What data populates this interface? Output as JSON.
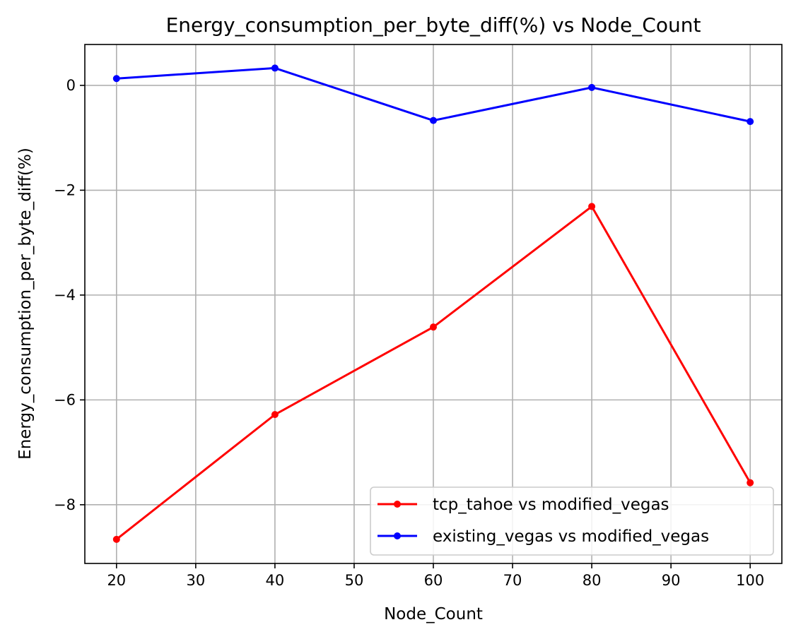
{
  "chart_data": {
    "type": "line",
    "title": "Energy_consumption_per_byte_diff(%) vs Node_Count",
    "xlabel": "Node_Count",
    "ylabel": "Energy_consumption_per_byte_diff(%)",
    "x": [
      20,
      40,
      60,
      80,
      100
    ],
    "xlim": [
      16,
      104
    ],
    "ylim": [
      -9.12,
      0.78
    ],
    "xticks": [
      20,
      30,
      40,
      50,
      60,
      70,
      80,
      90,
      100
    ],
    "yticks": [
      0,
      -2,
      -4,
      -6,
      -8
    ],
    "ytick_labels": [
      "0",
      "−2",
      "−4",
      "−6",
      "−8"
    ],
    "grid": true,
    "legend_position": "lower-right",
    "series": [
      {
        "name": "tcp_tahoe vs modified_vegas",
        "color": "#ff0000",
        "values": [
          -8.66,
          -6.28,
          -4.61,
          -2.31,
          -7.58
        ]
      },
      {
        "name": "existing_vegas vs modified_vegas",
        "color": "#0000ff",
        "values": [
          0.13,
          0.33,
          -0.67,
          -0.04,
          -0.69
        ]
      }
    ]
  }
}
